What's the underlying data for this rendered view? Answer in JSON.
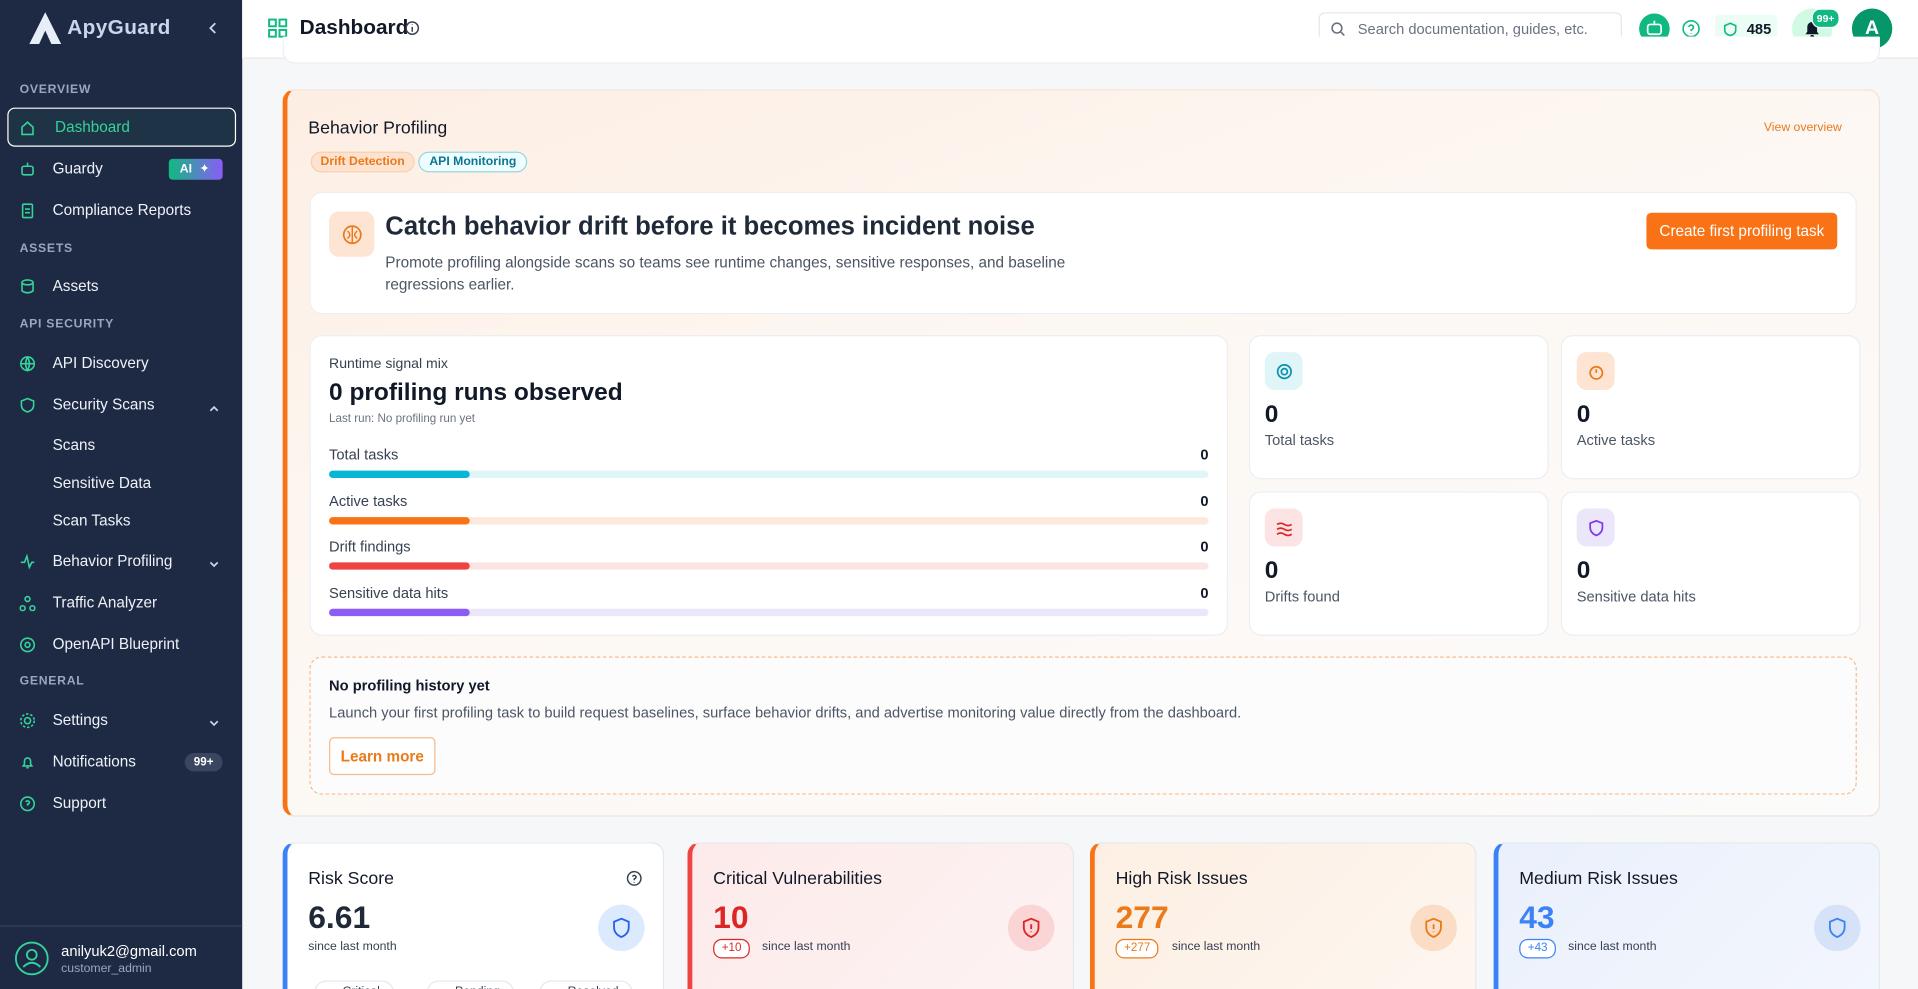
{
  "sidebar": {
    "brand": "ApyGuard",
    "sections": [
      {
        "title": "OVERVIEW",
        "items": [
          {
            "label": "Dashboard"
          },
          {
            "label": "Guardy",
            "badge": "AI"
          },
          {
            "label": "Compliance Reports"
          }
        ]
      },
      {
        "title": "ASSETS",
        "items": [
          {
            "label": "Assets"
          }
        ]
      },
      {
        "title": "API SECURITY",
        "items": [
          {
            "label": "API Discovery"
          },
          {
            "label": "Security Scans",
            "children": [
              "Scans",
              "Sensitive Data",
              "Scan Tasks"
            ]
          },
          {
            "label": "Behavior Profiling"
          },
          {
            "label": "Traffic Analyzer"
          },
          {
            "label": "OpenAPI Blueprint"
          }
        ]
      },
      {
        "title": "GENERAL",
        "items": [
          {
            "label": "Settings"
          },
          {
            "label": "Notifications",
            "badge": "99+"
          },
          {
            "label": "Support"
          }
        ]
      }
    ],
    "user": {
      "email": "anilyuk2@gmail.com",
      "role": "customer_admin"
    }
  },
  "header": {
    "title": "Dashboard",
    "search_placeholder": "Search documentation, guides, etc.",
    "credits": 485,
    "notification_badge": "99+",
    "avatar": "A"
  },
  "profiling": {
    "title": "Behavior Profiling",
    "view_link": "View overview",
    "tags": [
      "Drift Detection",
      "API Monitoring"
    ],
    "hero": {
      "heading": "Catch behavior drift before it becomes incident noise",
      "text": "Promote profiling alongside scans so teams see runtime changes, sensitive responses, and baseline regressions earlier.",
      "button": "Create first profiling task"
    },
    "mix": {
      "label": "Runtime signal mix",
      "heading": "0 profiling runs observed",
      "last_run": "Last run: No profiling run yet",
      "rows": [
        {
          "label": "Total tasks",
          "value": 0
        },
        {
          "label": "Active tasks",
          "value": 0
        },
        {
          "label": "Drift findings",
          "value": 0
        },
        {
          "label": "Sensitive data hits",
          "value": 0
        }
      ]
    },
    "stats": [
      {
        "value": 0,
        "label": "Total tasks"
      },
      {
        "value": 0,
        "label": "Active tasks"
      },
      {
        "value": 0,
        "label": "Drifts found"
      },
      {
        "value": 0,
        "label": "Sensitive data hits"
      }
    ],
    "empty": {
      "title": "No profiling history yet",
      "text": "Launch your first profiling task to build request baselines, surface behavior drifts, and advertise monitoring value directly from the dashboard.",
      "button": "Learn more"
    }
  },
  "cards": [
    {
      "title": "Risk Score",
      "value": 6.61,
      "subtitle": "since last month",
      "legend": [
        "Critical",
        "Pending",
        "Resolved"
      ]
    },
    {
      "title": "Critical Vulnerabilities",
      "value": 10,
      "delta": "+10",
      "subtitle": "since last month"
    },
    {
      "title": "High Risk Issues",
      "value": 277,
      "delta": "+277",
      "subtitle": "since last month"
    },
    {
      "title": "Medium Risk Issues",
      "value": 43,
      "delta": "+43",
      "subtitle": "since last month"
    }
  ]
}
